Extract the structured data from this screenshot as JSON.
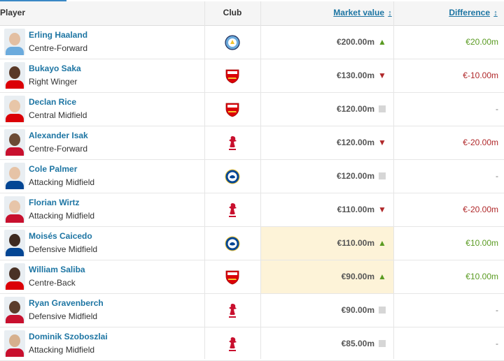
{
  "header": {
    "player": "Player",
    "club": "Club",
    "market_value": "Market value",
    "difference": "Difference",
    "sort_glyph": "↕"
  },
  "colors": {
    "link": "#1d75a3",
    "up": "#5a9b22",
    "down": "#b0282a",
    "highlight": "#fdf3d8",
    "man_city": "#6cabdd",
    "arsenal": "#db0007",
    "liverpool": "#c8102e",
    "chelsea": "#034694"
  },
  "players": [
    {
      "name": "Erling Haaland",
      "position": "Centre-Forward",
      "club_icon": "manchester-city-crest-icon",
      "club": "mancity",
      "market_value": "€200.00m",
      "trend": "up",
      "trend_icon": "arrow-up-icon",
      "trend_glyph": "▲",
      "difference": "€20.00m",
      "highlight": false
    },
    {
      "name": "Bukayo Saka",
      "position": "Right Winger",
      "club_icon": "arsenal-crest-icon",
      "club": "arsenal",
      "market_value": "€130.00m",
      "trend": "down",
      "trend_icon": "arrow-down-icon",
      "trend_glyph": "▼",
      "difference": "€-10.00m",
      "highlight": false
    },
    {
      "name": "Declan Rice",
      "position": "Central Midfield",
      "club_icon": "arsenal-crest-icon",
      "club": "arsenal",
      "market_value": "€120.00m",
      "trend": "same",
      "trend_icon": "unchanged-icon",
      "trend_glyph": "",
      "difference": "-",
      "highlight": false
    },
    {
      "name": "Alexander Isak",
      "position": "Centre-Forward",
      "club_icon": "liverpool-crest-icon",
      "club": "liverpool",
      "market_value": "€120.00m",
      "trend": "down",
      "trend_icon": "arrow-down-icon",
      "trend_glyph": "▼",
      "difference": "€-20.00m",
      "highlight": false
    },
    {
      "name": "Cole Palmer",
      "position": "Attacking Midfield",
      "club_icon": "chelsea-crest-icon",
      "club": "chelsea",
      "market_value": "€120.00m",
      "trend": "same",
      "trend_icon": "unchanged-icon",
      "trend_glyph": "",
      "difference": "-",
      "highlight": false
    },
    {
      "name": "Florian Wirtz",
      "position": "Attacking Midfield",
      "club_icon": "liverpool-crest-icon",
      "club": "liverpool",
      "market_value": "€110.00m",
      "trend": "down",
      "trend_icon": "arrow-down-icon",
      "trend_glyph": "▼",
      "difference": "€-20.00m",
      "highlight": false
    },
    {
      "name": "Moisés Caicedo",
      "position": "Defensive Midfield",
      "club_icon": "chelsea-crest-icon",
      "club": "chelsea",
      "market_value": "€110.00m",
      "trend": "up",
      "trend_icon": "arrow-up-icon",
      "trend_glyph": "▲",
      "difference": "€10.00m",
      "highlight": true
    },
    {
      "name": "William Saliba",
      "position": "Centre-Back",
      "club_icon": "arsenal-crest-icon",
      "club": "arsenal",
      "market_value": "€90.00m",
      "trend": "up",
      "trend_icon": "arrow-up-icon",
      "trend_glyph": "▲",
      "difference": "€10.00m",
      "highlight": true
    },
    {
      "name": "Ryan Gravenberch",
      "position": "Defensive Midfield",
      "club_icon": "liverpool-crest-icon",
      "club": "liverpool",
      "market_value": "€90.00m",
      "trend": "same",
      "trend_icon": "unchanged-icon",
      "trend_glyph": "",
      "difference": "-",
      "highlight": false
    },
    {
      "name": "Dominik Szoboszlai",
      "position": "Attacking Midfield",
      "club_icon": "liverpool-crest-icon",
      "club": "liverpool",
      "market_value": "€85.00m",
      "trend": "same",
      "trend_icon": "unchanged-icon",
      "trend_glyph": "",
      "difference": "-",
      "highlight": false
    }
  ]
}
